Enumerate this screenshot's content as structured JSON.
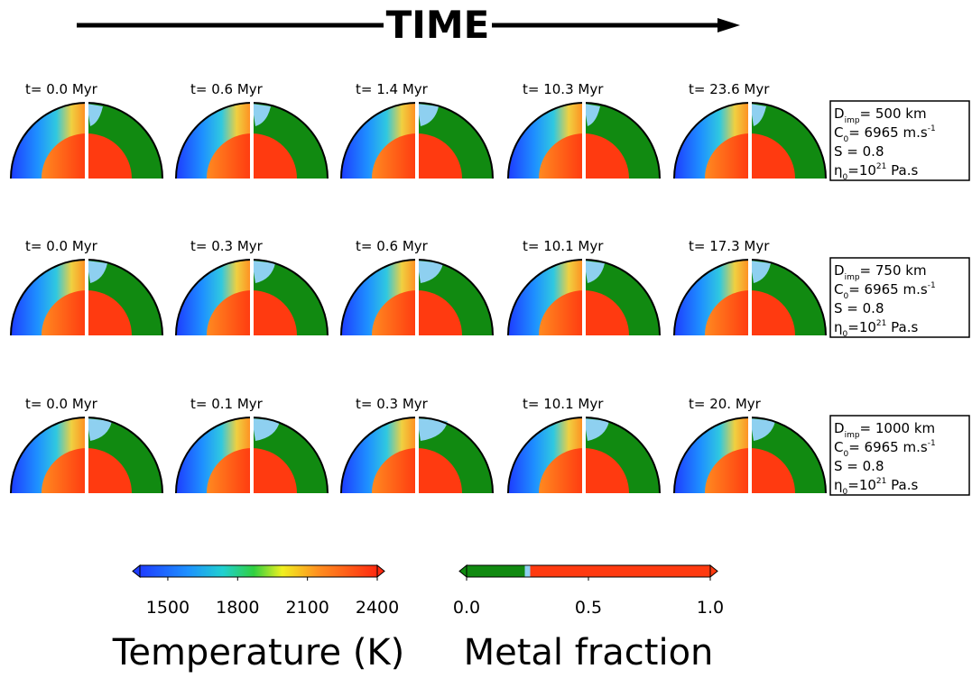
{
  "header": {
    "title": "TIME"
  },
  "rows": [
    {
      "times": [
        "t= 0.0 Myr",
        "t= 0.6 Myr",
        "t= 1.4 Myr",
        "t= 10.3 Myr",
        "t= 23.6 Myr"
      ],
      "params": [
        {
          "main": "D",
          "sub": "imp",
          "rest": "= 500 km"
        },
        {
          "main": "C",
          "sub": "0",
          "rest": "= 6965 m.s",
          "sup": "-1"
        },
        {
          "main": "S = 0.8"
        },
        {
          "main": "η",
          "sub": "0",
          "rest": "=10",
          "sup": "21",
          "tail": " Pa.s"
        }
      ]
    },
    {
      "times": [
        "t= 0.0 Myr",
        "t= 0.3 Myr",
        "t= 0.6 Myr",
        "t= 10.1 Myr",
        "t= 17.3 Myr"
      ],
      "params": [
        {
          "main": "D",
          "sub": "imp",
          "rest": "= 750 km"
        },
        {
          "main": "C",
          "sub": "0",
          "rest": "= 6965 m.s",
          "sup": "-1"
        },
        {
          "main": "S = 0.8"
        },
        {
          "main": "η",
          "sub": "0",
          "rest": "=10",
          "sup": "21",
          "tail": " Pa.s"
        }
      ]
    },
    {
      "times": [
        "t= 0.0 Myr",
        "t= 0.1 Myr",
        "t= 0.3 Myr",
        "t= 10.1 Myr",
        "t= 20. Myr"
      ],
      "params": [
        {
          "main": "D",
          "sub": "imp",
          "rest": "= 1000 km"
        },
        {
          "main": "C",
          "sub": "0",
          "rest": "= 6965 m.s",
          "sup": "-1"
        },
        {
          "main": "S = 0.8"
        },
        {
          "main": "η",
          "sub": "0",
          "rest": "=10",
          "sup": "21",
          "tail": " Pa.s"
        }
      ]
    }
  ],
  "colorbars": [
    {
      "title": "Temperature (K)",
      "lim": [
        1380,
        2400
      ],
      "ticks": [
        1500,
        1800,
        2100,
        2400
      ]
    },
    {
      "title": "Metal fraction",
      "lim": [
        0,
        1
      ],
      "ticks": [
        {
          "value": 0,
          "label": "0.0"
        },
        {
          "value": 0.5,
          "label": "0.5"
        },
        {
          "value": 1,
          "label": "1.0"
        }
      ]
    }
  ]
}
